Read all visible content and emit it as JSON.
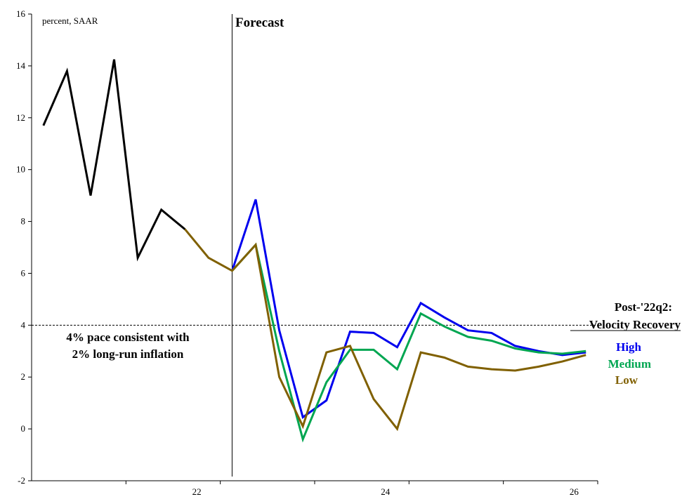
{
  "chart_data": {
    "type": "line",
    "unit_label": "percent, SAAR",
    "forecast_label": "Forecast",
    "reference_line": {
      "value": 4,
      "label_lines": [
        "4% pace consistent with",
        "2% long-run inflation"
      ]
    },
    "legend": {
      "title_lines": [
        "Post-'22q2:",
        "Velocity Recovery"
      ]
    },
    "ylim": [
      -2,
      16
    ],
    "yticks": [
      -2,
      0,
      2,
      4,
      6,
      8,
      10,
      12,
      14,
      16
    ],
    "x_range": [
      1,
      24
    ],
    "xtick_labels": [
      {
        "label": "22",
        "pos": 7.5
      },
      {
        "label": "24",
        "pos": 15.5
      },
      {
        "label": "26",
        "pos": 23.5
      }
    ],
    "x_ticks": [
      4.5,
      8.5,
      12.5,
      16.5,
      20.5,
      24.5
    ],
    "forecast_x": 9,
    "series": [
      {
        "name": "",
        "color": "#000000",
        "x": [
          1,
          2,
          3,
          4,
          5,
          6,
          7
        ],
        "values": [
          11.7,
          13.8,
          9.0,
          14.25,
          6.6,
          8.45,
          7.7
        ]
      },
      {
        "name": "High",
        "color": "#0000ee",
        "x": [
          9,
          10,
          11,
          12,
          13,
          14,
          15,
          16,
          17,
          18,
          19,
          20,
          21,
          22,
          23,
          24
        ],
        "values": [
          6.1,
          8.85,
          3.8,
          0.45,
          1.1,
          3.75,
          3.7,
          3.15,
          4.85,
          4.3,
          3.8,
          3.7,
          3.2,
          3.0,
          2.85,
          2.95
        ]
      },
      {
        "name": "Medium",
        "color": "#00a651",
        "x": [
          9,
          10,
          11,
          12,
          13,
          14,
          15,
          16,
          17,
          18,
          19,
          20,
          21,
          22,
          23,
          24
        ],
        "values": [
          6.1,
          7.1,
          3.0,
          -0.4,
          1.8,
          3.05,
          3.05,
          2.3,
          4.45,
          3.95,
          3.55,
          3.4,
          3.1,
          2.95,
          2.9,
          3.0
        ]
      },
      {
        "name": "Low",
        "color": "#806000",
        "x": [
          7,
          8,
          9,
          10,
          11,
          12,
          13,
          14,
          15,
          16,
          17,
          18,
          19,
          20,
          21,
          22,
          23,
          24
        ],
        "values": [
          7.7,
          6.6,
          6.1,
          7.1,
          2.0,
          0.1,
          2.95,
          3.2,
          1.15,
          0.0,
          2.95,
          2.75,
          2.4,
          2.3,
          2.25,
          2.4,
          2.6,
          2.85
        ]
      }
    ]
  }
}
